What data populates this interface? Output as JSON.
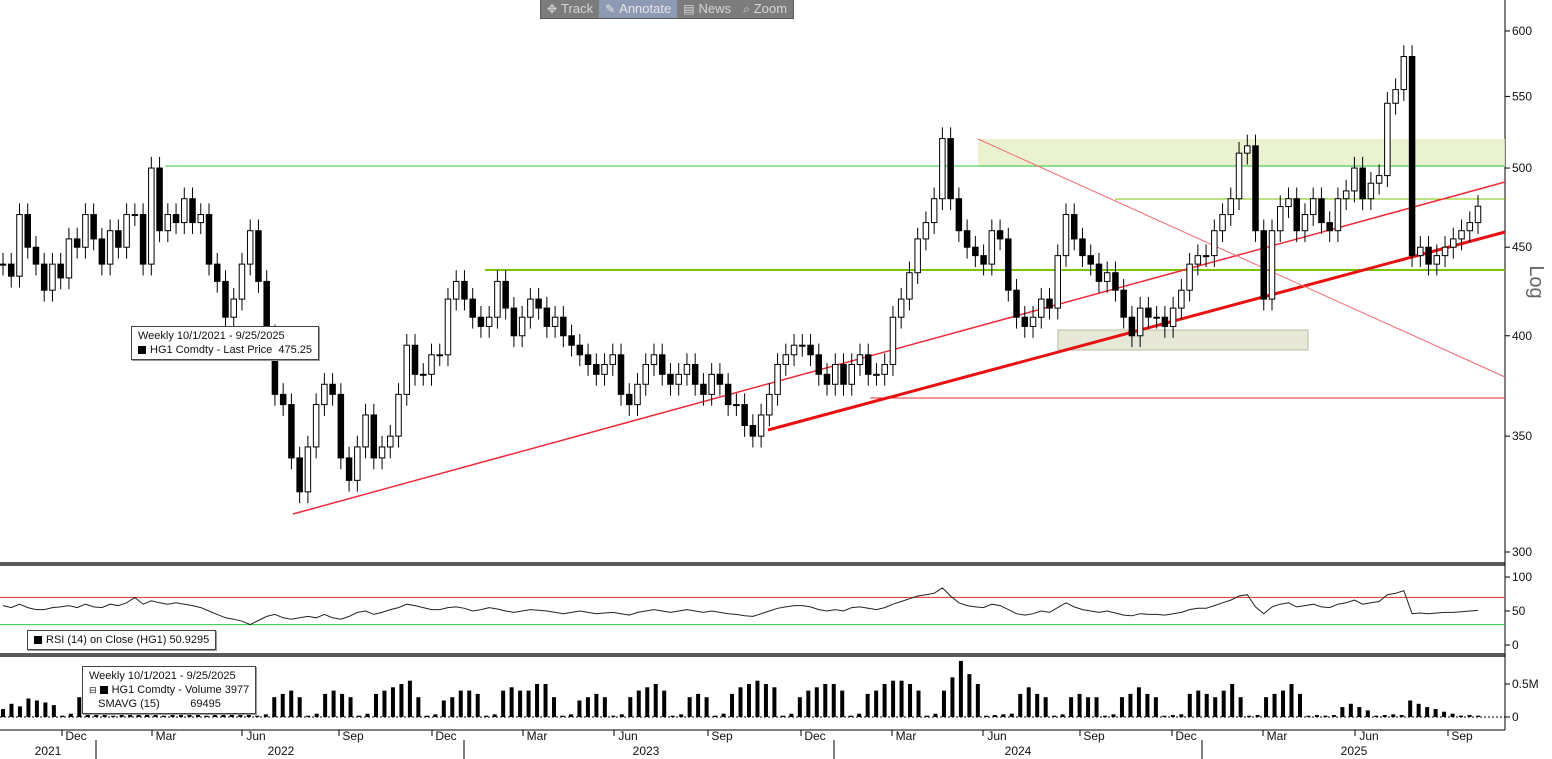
{
  "toolbar": {
    "items": [
      {
        "label": "Track",
        "icon": "move-icon"
      },
      {
        "label": "Annotate",
        "icon": "pencil-icon",
        "active": true
      },
      {
        "label": "News",
        "icon": "news-icon"
      },
      {
        "label": "Zoom",
        "icon": "magnifier-icon"
      }
    ]
  },
  "legend_price": {
    "range": "Weekly 10/1/2021 - 9/25/2025",
    "series": "HG1 Comdty - Last Price",
    "value": "475.25"
  },
  "legend_rsi": {
    "series": "RSI (14)  on Close (HG1)",
    "value": "50.9295"
  },
  "legend_volume": {
    "range": "Weekly 10/1/2021 - 9/25/2025",
    "series": "HG1 Comdty - Volume",
    "value": "3977",
    "sma_label": "SMAVG (15)",
    "sma_value": "69495"
  },
  "chart_data": {
    "type": "candlestick",
    "scale": "log",
    "scale_label": "Log",
    "price_ticks": [
      300,
      350,
      400,
      450,
      500,
      550,
      600
    ],
    "rsi_ticks": [
      0,
      50,
      100
    ],
    "rsi_levels": [
      30,
      70
    ],
    "volume_ticks": [
      "0",
      "0.5M"
    ],
    "x_month_labels": [
      "Dec",
      "Mar",
      "Jun",
      "Sep",
      "Dec",
      "Mar",
      "Jun",
      "Sep",
      "Dec",
      "Mar",
      "Jun",
      "Sep",
      "Dec",
      "Mar",
      "Jun",
      "Sep"
    ],
    "x_year_labels": [
      "2021",
      "2022",
      "2023",
      "2024",
      "2025"
    ],
    "price_path": [
      440,
      433,
      470,
      450,
      440,
      425,
      440,
      432,
      455,
      450,
      470,
      455,
      440,
      460,
      450,
      470,
      470,
      440,
      500,
      460,
      470,
      465,
      480,
      465,
      470,
      440,
      430,
      410,
      420,
      440,
      460,
      430,
      400,
      370,
      365,
      340,
      325,
      345,
      365,
      375,
      370,
      340,
      330,
      345,
      360,
      340,
      345,
      350,
      370,
      395,
      380,
      380,
      390,
      390,
      420,
      430,
      420,
      410,
      405,
      410,
      430,
      415,
      400,
      410,
      420,
      415,
      405,
      410,
      400,
      395,
      390,
      385,
      380,
      385,
      390,
      370,
      365,
      375,
      385,
      390,
      380,
      375,
      380,
      385,
      375,
      370,
      380,
      375,
      365,
      365,
      355,
      350,
      360,
      370,
      385,
      390,
      395,
      395,
      390,
      380,
      375,
      385,
      375,
      385,
      390,
      380,
      380,
      385,
      410,
      420,
      435,
      455,
      465,
      480,
      520,
      480,
      460,
      450,
      445,
      440,
      460,
      455,
      425,
      410,
      405,
      410,
      420,
      415,
      445,
      470,
      455,
      445,
      440,
      430,
      435,
      425,
      410,
      400,
      415,
      410,
      410,
      405,
      415,
      425,
      440,
      445,
      445,
      460,
      470,
      480,
      510,
      515,
      460,
      420,
      460,
      475,
      480,
      460,
      470,
      480,
      465,
      460,
      480,
      485,
      500,
      480,
      490,
      495,
      545,
      555,
      580,
      445,
      450,
      440,
      445,
      450,
      455,
      460,
      465,
      475.25
    ],
    "rsi_path": [
      58,
      55,
      60,
      55,
      52,
      52,
      55,
      56,
      58,
      55,
      60,
      56,
      55,
      60,
      58,
      62,
      70,
      60,
      65,
      62,
      60,
      62,
      60,
      58,
      55,
      50,
      45,
      40,
      38,
      35,
      30,
      36,
      42,
      45,
      40,
      38,
      40,
      42,
      40,
      45,
      40,
      38,
      42,
      48,
      50,
      45,
      48,
      52,
      55,
      60,
      58,
      55,
      52,
      52,
      55,
      56,
      54,
      50,
      52,
      55,
      53,
      50,
      48,
      50,
      52,
      51,
      50,
      48,
      46,
      48,
      50,
      48,
      46,
      47,
      48,
      46,
      44,
      48,
      50,
      52,
      50,
      48,
      50,
      52,
      50,
      48,
      50,
      48,
      46,
      45,
      43,
      42,
      46,
      50,
      54,
      56,
      58,
      58,
      56,
      52,
      50,
      52,
      50,
      55,
      56,
      54,
      52,
      55,
      60,
      64,
      68,
      72,
      74,
      76,
      84,
      72,
      62,
      58,
      56,
      55,
      60,
      58,
      52,
      46,
      44,
      46,
      50,
      48,
      55,
      62,
      56,
      52,
      50,
      48,
      50,
      47,
      44,
      43,
      46,
      45,
      45,
      44,
      46,
      48,
      52,
      54,
      54,
      58,
      62,
      66,
      72,
      74,
      56,
      46,
      56,
      60,
      62,
      56,
      58,
      60,
      56,
      55,
      60,
      62,
      66,
      60,
      62,
      64,
      74,
      76,
      80,
      46,
      47,
      46,
      47,
      48,
      48,
      49,
      50,
      50.9295
    ],
    "volume_bars": [
      0.12,
      0.2,
      0.16,
      0.28,
      0.25,
      0.22,
      0.18,
      0.02,
      0.05,
      0.3,
      0.25,
      0.22,
      0.18,
      0.02,
      0.03,
      0.35,
      0.3,
      0.32,
      0.28,
      0.02,
      0.03,
      0.28,
      0.3,
      0.2,
      0.02,
      0.04,
      0.28,
      0.35,
      0.3,
      0.22,
      0.02,
      0.04,
      0.3,
      0.35,
      0.4,
      0.3,
      0.02,
      0.05,
      0.35,
      0.4,
      0.35,
      0.3,
      0.02,
      0.05,
      0.35,
      0.4,
      0.45,
      0.5,
      0.55,
      0.3,
      0.02,
      0.04,
      0.25,
      0.3,
      0.4,
      0.4,
      0.35,
      0.02,
      0.04,
      0.4,
      0.45,
      0.4,
      0.4,
      0.5,
      0.5,
      0.3,
      0.02,
      0.04,
      0.25,
      0.3,
      0.35,
      0.3,
      0.02,
      0.04,
      0.3,
      0.4,
      0.45,
      0.5,
      0.4,
      0.02,
      0.04,
      0.3,
      0.35,
      0.3,
      0.02,
      0.05,
      0.35,
      0.45,
      0.5,
      0.55,
      0.5,
      0.45,
      0.02,
      0.05,
      0.3,
      0.4,
      0.45,
      0.5,
      0.5,
      0.4,
      0.02,
      0.05,
      0.35,
      0.4,
      0.5,
      0.55,
      0.55,
      0.5,
      0.4,
      0.02,
      0.05,
      0.4,
      0.6,
      0.85,
      0.65,
      0.5,
      0.02,
      0.03,
      0.04,
      0.05,
      0.35,
      0.45,
      0.35,
      0.3,
      0.02,
      0.04,
      0.3,
      0.35,
      0.3,
      0.3,
      0.02,
      0.04,
      0.3,
      0.35,
      0.45,
      0.35,
      0.3,
      0.02,
      0.03,
      0.04,
      0.35,
      0.4,
      0.35,
      0.3,
      0.4,
      0.5,
      0.3,
      0.02,
      0.03,
      0.3,
      0.35,
      0.4,
      0.5,
      0.35,
      0.02,
      0.03,
      0.02,
      0.03,
      0.15,
      0.2,
      0.15,
      0.1,
      0.02,
      0.03,
      0.04,
      0.03,
      0.25,
      0.2,
      0.15,
      0.12,
      0.08,
      0.05,
      0.02,
      0.03,
      0.02
    ]
  }
}
